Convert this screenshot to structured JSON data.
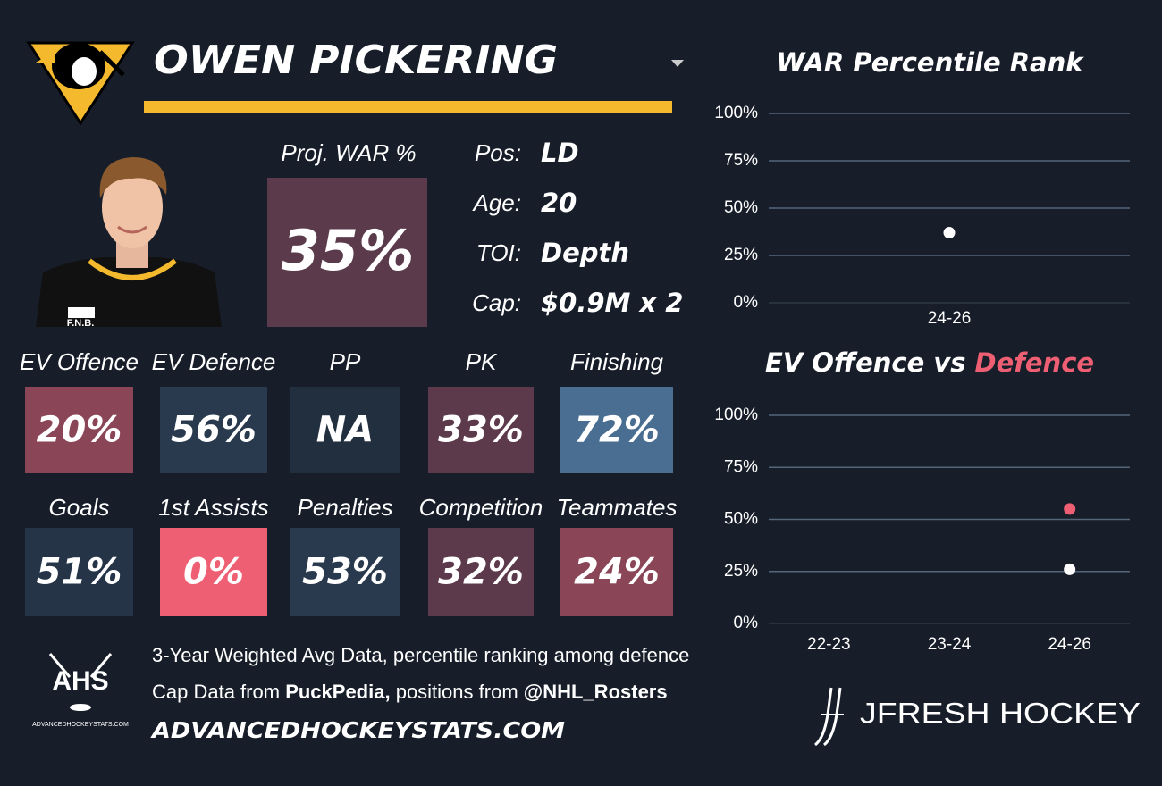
{
  "header": {
    "name": "OWEN PICKERING"
  },
  "player_photo": {
    "sponsor": "F.N.B."
  },
  "projection": {
    "label": "Proj. WAR %",
    "value": "35%",
    "color": "#5b3a4b"
  },
  "info": [
    {
      "label": "Pos:",
      "value": "LD"
    },
    {
      "label": "Age:",
      "value": "20"
    },
    {
      "label": "TOI:",
      "value": "Depth"
    },
    {
      "label": "Cap:",
      "value": "$0.9M x 2"
    }
  ],
  "tiles": [
    [
      {
        "label": "EV Offence",
        "value": "20%",
        "color": "#8a4557"
      },
      {
        "label": "EV Defence",
        "value": "56%",
        "color": "#2a3a4e"
      },
      {
        "label": "PP",
        "value": "NA",
        "color": "#222f3f"
      },
      {
        "label": "PK",
        "value": "33%",
        "color": "#5d3a4b"
      },
      {
        "label": "Finishing",
        "value": "72%",
        "color": "#4a6e92"
      }
    ],
    [
      {
        "label": "Goals",
        "value": "51%",
        "color": "#253447"
      },
      {
        "label": "1st Assists",
        "value": "0%",
        "color": "#ef5f73"
      },
      {
        "label": "Penalties",
        "value": "53%",
        "color": "#2a3a4e"
      },
      {
        "label": "Competition",
        "value": "32%",
        "color": "#5d3a4b"
      },
      {
        "label": "Teammates",
        "value": "24%",
        "color": "#8a4557"
      }
    ]
  ],
  "footer": {
    "note": "3-Year Weighted Avg Data, percentile ranking among defence",
    "credit": [
      "Cap Data from",
      "PuckPedia,",
      "positions from",
      "@NHL_Rosters"
    ],
    "site": "ADVANCEDHOCKEYSTATS.COM",
    "ahs_logo": {
      "title": "AHS",
      "caption": "ADVANCEDHOCKEYSTATS.COM"
    },
    "brand": "JFRESH HOCKEY"
  },
  "chart_data": [
    {
      "type": "scatter",
      "title": [
        "WAR Percentile Rank"
      ],
      "categories": [
        "24-26"
      ],
      "series": [
        {
          "color": "#ffffff",
          "values": [
            37
          ]
        }
      ],
      "ylim": [
        0,
        100
      ],
      "yticks": [
        {
          "value": 0,
          "label": "0%"
        },
        {
          "value": 25,
          "label": "25%"
        },
        {
          "value": 50,
          "label": "50%"
        },
        {
          "value": 75,
          "label": "75%"
        },
        {
          "value": 100,
          "label": "100%"
        }
      ],
      "grid": true
    },
    {
      "type": "scatter",
      "title": [
        "EV Offence vs",
        "Defence"
      ],
      "title_colors": [
        "#ffffff",
        "#ef5f73"
      ],
      "categories": [
        "22-23",
        "23-24",
        "24-26"
      ],
      "series": [
        {
          "color": "#ffffff",
          "values": [
            null,
            null,
            26
          ]
        },
        {
          "color": "#ef5f73",
          "values": [
            null,
            null,
            55
          ]
        }
      ],
      "ylim": [
        0,
        100
      ],
      "yticks": [
        {
          "value": 0,
          "label": "0%"
        },
        {
          "value": 25,
          "label": "25%"
        },
        {
          "value": 50,
          "label": "50%"
        },
        {
          "value": 75,
          "label": "75%"
        },
        {
          "value": 100,
          "label": "100%"
        }
      ],
      "grid": true
    }
  ]
}
